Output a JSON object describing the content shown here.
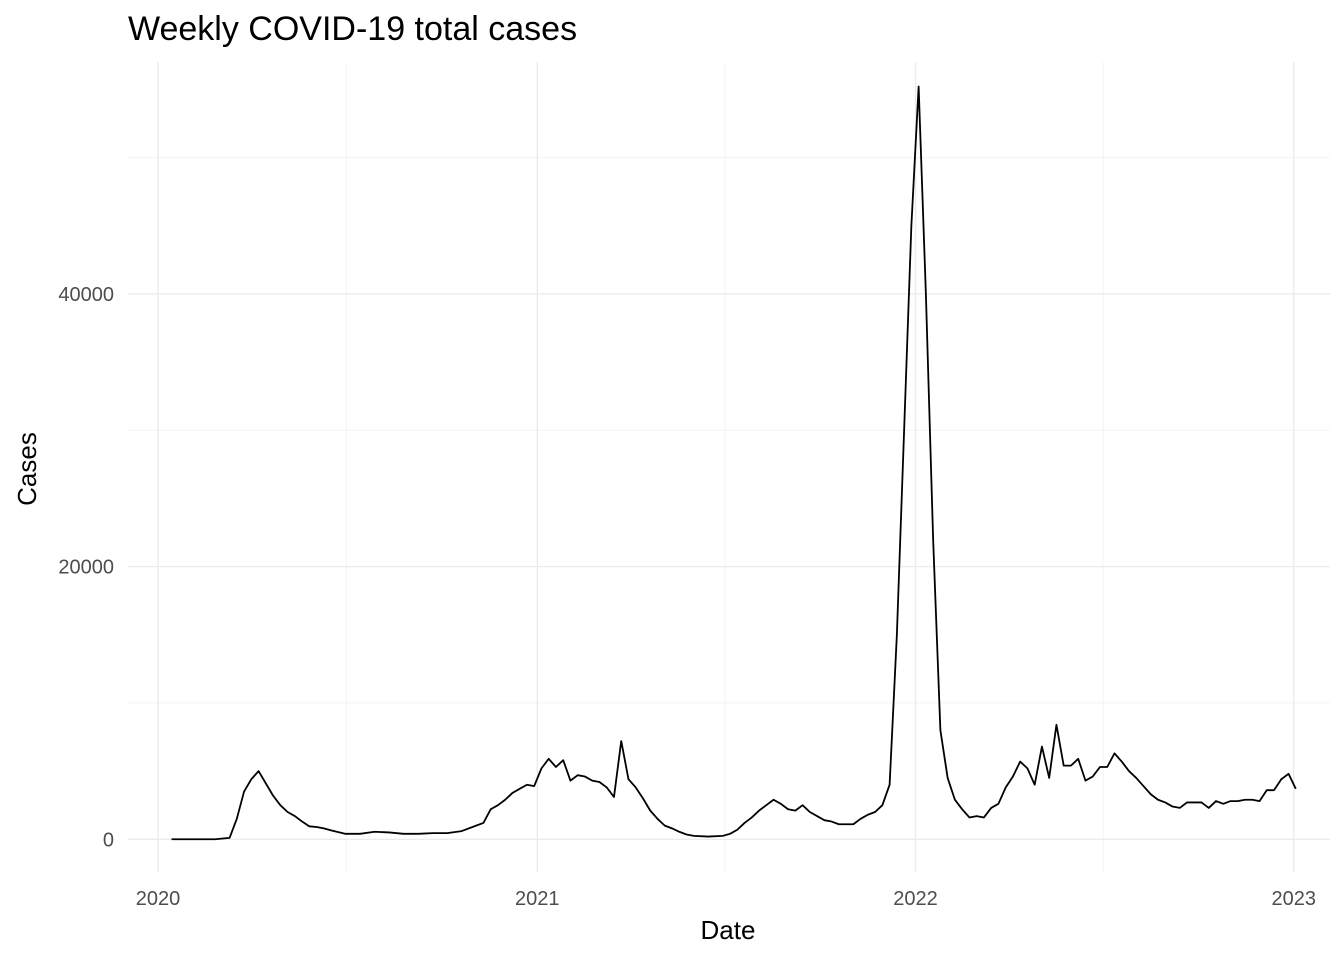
{
  "chart_data": {
    "type": "line",
    "title": "Weekly COVID-19 total cases",
    "xlabel": "Date",
    "ylabel": "Cases",
    "x_axis_type": "date",
    "xlim": [
      "2019-12-03",
      "2023-02-05"
    ],
    "ylim": [
      -2400,
      57000
    ],
    "x_ticks": [
      "2020-01-01",
      "2021-01-01",
      "2022-01-01",
      "2023-01-01"
    ],
    "x_tick_labels": [
      "2020",
      "2021",
      "2022",
      "2023"
    ],
    "x_minor_ticks": [
      "2020-07-01",
      "2021-07-01",
      "2022-07-01"
    ],
    "y_ticks": [
      0,
      20000,
      40000
    ],
    "y_tick_labels": [
      "0",
      "20000",
      "40000"
    ],
    "y_minor_ticks": [
      10000,
      30000,
      50000
    ],
    "grid": true,
    "legend": "none",
    "series": [
      {
        "color": "#000000",
        "points": [
          [
            "2020-01-14",
            0
          ],
          [
            "2020-01-28",
            0
          ],
          [
            "2020-02-11",
            0
          ],
          [
            "2020-02-25",
            0
          ],
          [
            "2020-03-10",
            100
          ],
          [
            "2020-03-17",
            1500
          ],
          [
            "2020-03-24",
            3500
          ],
          [
            "2020-03-31",
            4400
          ],
          [
            "2020-04-07",
            5000
          ],
          [
            "2020-04-14",
            4100
          ],
          [
            "2020-04-21",
            3200
          ],
          [
            "2020-04-28",
            2500
          ],
          [
            "2020-05-05",
            2000
          ],
          [
            "2020-05-12",
            1700
          ],
          [
            "2020-05-19",
            1300
          ],
          [
            "2020-05-26",
            950
          ],
          [
            "2020-06-02",
            900
          ],
          [
            "2020-06-09",
            800
          ],
          [
            "2020-06-16",
            650
          ],
          [
            "2020-06-30",
            400
          ],
          [
            "2020-07-14",
            400
          ],
          [
            "2020-07-28",
            550
          ],
          [
            "2020-08-11",
            500
          ],
          [
            "2020-08-25",
            400
          ],
          [
            "2020-09-08",
            400
          ],
          [
            "2020-09-22",
            450
          ],
          [
            "2020-10-06",
            450
          ],
          [
            "2020-10-20",
            600
          ],
          [
            "2020-11-03",
            1000
          ],
          [
            "2020-11-10",
            1200
          ],
          [
            "2020-11-17",
            2200
          ],
          [
            "2020-11-24",
            2500
          ],
          [
            "2020-12-01",
            2900
          ],
          [
            "2020-12-08",
            3400
          ],
          [
            "2020-12-15",
            3700
          ],
          [
            "2020-12-22",
            4000
          ],
          [
            "2020-12-29",
            3900
          ],
          [
            "2021-01-05",
            5200
          ],
          [
            "2021-01-12",
            5900
          ],
          [
            "2021-01-19",
            5300
          ],
          [
            "2021-01-26",
            5800
          ],
          [
            "2021-02-02",
            4300
          ],
          [
            "2021-02-09",
            4700
          ],
          [
            "2021-02-16",
            4600
          ],
          [
            "2021-02-23",
            4300
          ],
          [
            "2021-03-02",
            4200
          ],
          [
            "2021-03-09",
            3800
          ],
          [
            "2021-03-16",
            3100
          ],
          [
            "2021-03-23",
            7200
          ],
          [
            "2021-03-30",
            4400
          ],
          [
            "2021-04-06",
            3800
          ],
          [
            "2021-04-13",
            3000
          ],
          [
            "2021-04-20",
            2100
          ],
          [
            "2021-04-27",
            1500
          ],
          [
            "2021-05-04",
            1000
          ],
          [
            "2021-05-11",
            800
          ],
          [
            "2021-05-18",
            550
          ],
          [
            "2021-05-25",
            350
          ],
          [
            "2021-06-01",
            250
          ],
          [
            "2021-06-15",
            200
          ],
          [
            "2021-06-29",
            250
          ],
          [
            "2021-07-06",
            400
          ],
          [
            "2021-07-13",
            700
          ],
          [
            "2021-07-20",
            1200
          ],
          [
            "2021-07-27",
            1600
          ],
          [
            "2021-08-03",
            2100
          ],
          [
            "2021-08-10",
            2500
          ],
          [
            "2021-08-17",
            2900
          ],
          [
            "2021-08-24",
            2600
          ],
          [
            "2021-08-31",
            2200
          ],
          [
            "2021-09-07",
            2100
          ],
          [
            "2021-09-14",
            2500
          ],
          [
            "2021-09-21",
            2000
          ],
          [
            "2021-09-28",
            1700
          ],
          [
            "2021-10-05",
            1400
          ],
          [
            "2021-10-12",
            1300
          ],
          [
            "2021-10-19",
            1100
          ],
          [
            "2021-11-02",
            1100
          ],
          [
            "2021-11-09",
            1500
          ],
          [
            "2021-11-16",
            1800
          ],
          [
            "2021-11-23",
            2000
          ],
          [
            "2021-11-30",
            2500
          ],
          [
            "2021-12-07",
            4000
          ],
          [
            "2021-12-14",
            15000
          ],
          [
            "2021-12-21",
            30000
          ],
          [
            "2021-12-28",
            45000
          ],
          [
            "2022-01-04",
            55200
          ],
          [
            "2022-01-11",
            40000
          ],
          [
            "2022-01-18",
            22000
          ],
          [
            "2022-01-25",
            8000
          ],
          [
            "2022-02-01",
            4500
          ],
          [
            "2022-02-08",
            2900
          ],
          [
            "2022-02-15",
            2200
          ],
          [
            "2022-02-22",
            1600
          ],
          [
            "2022-03-01",
            1700
          ],
          [
            "2022-03-08",
            1600
          ],
          [
            "2022-03-15",
            2300
          ],
          [
            "2022-03-22",
            2600
          ],
          [
            "2022-03-29",
            3800
          ],
          [
            "2022-04-05",
            4600
          ],
          [
            "2022-04-12",
            5700
          ],
          [
            "2022-04-19",
            5200
          ],
          [
            "2022-04-26",
            4000
          ],
          [
            "2022-05-03",
            6800
          ],
          [
            "2022-05-10",
            4500
          ],
          [
            "2022-05-17",
            8400
          ],
          [
            "2022-05-24",
            5400
          ],
          [
            "2022-05-31",
            5400
          ],
          [
            "2022-06-07",
            5900
          ],
          [
            "2022-06-14",
            4300
          ],
          [
            "2022-06-21",
            4600
          ],
          [
            "2022-06-28",
            5300
          ],
          [
            "2022-07-05",
            5300
          ],
          [
            "2022-07-12",
            6300
          ],
          [
            "2022-07-19",
            5700
          ],
          [
            "2022-07-26",
            5000
          ],
          [
            "2022-08-02",
            4500
          ],
          [
            "2022-08-09",
            3900
          ],
          [
            "2022-08-16",
            3300
          ],
          [
            "2022-08-23",
            2900
          ],
          [
            "2022-08-30",
            2700
          ],
          [
            "2022-09-06",
            2400
          ],
          [
            "2022-09-13",
            2300
          ],
          [
            "2022-09-20",
            2700
          ],
          [
            "2022-09-27",
            2700
          ],
          [
            "2022-10-04",
            2700
          ],
          [
            "2022-10-11",
            2300
          ],
          [
            "2022-10-18",
            2800
          ],
          [
            "2022-10-25",
            2600
          ],
          [
            "2022-11-01",
            2800
          ],
          [
            "2022-11-08",
            2800
          ],
          [
            "2022-11-15",
            2900
          ],
          [
            "2022-11-22",
            2900
          ],
          [
            "2022-11-29",
            2800
          ],
          [
            "2022-12-06",
            3600
          ],
          [
            "2022-12-13",
            3600
          ],
          [
            "2022-12-20",
            4400
          ],
          [
            "2022-12-27",
            4800
          ],
          [
            "2023-01-03",
            3700
          ]
        ]
      }
    ]
  }
}
